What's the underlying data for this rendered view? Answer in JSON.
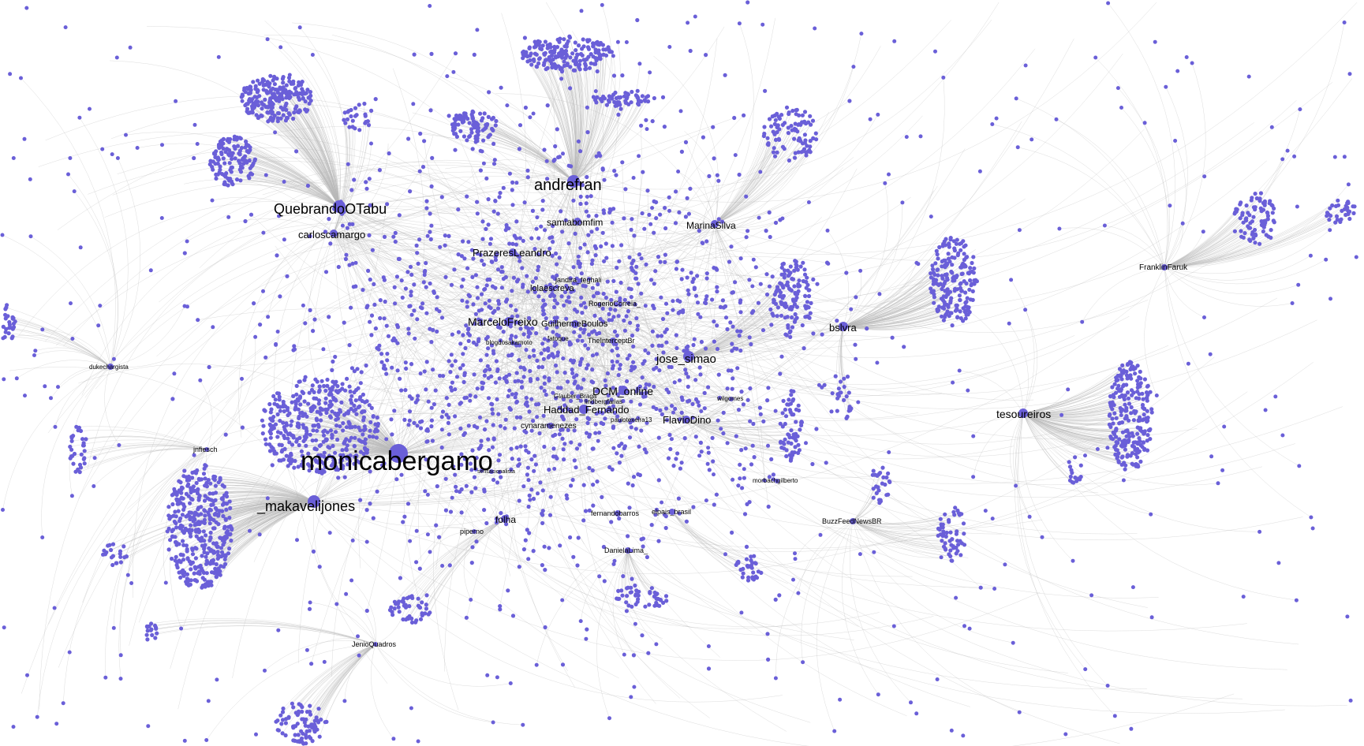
{
  "graph": {
    "node_color": "#6a5fd8",
    "edge_color": "#b8b8b8",
    "background": "#ffffff",
    "labels": [
      {
        "id": "monicabergamo",
        "text": "monicabergamo"
      },
      {
        "id": "andrefran",
        "text": "andrefran"
      },
      {
        "id": "QuebrandoOTabu",
        "text": "QuebrandoOTabu"
      },
      {
        "id": "_makavelijones",
        "text": "_makavelijones"
      },
      {
        "id": "carloscamargo",
        "text": "carloscamargo"
      },
      {
        "id": "samiabomfim",
        "text": "samiabomfim"
      },
      {
        "id": "MarinaSilva",
        "text": "MarinaSilva"
      },
      {
        "id": "PrazeresLeandro",
        "text": "PrazeresLeandro"
      },
      {
        "id": "jandira_feghali",
        "text": "jandira_feghali"
      },
      {
        "id": "lolaescreva",
        "text": "lolaescreva"
      },
      {
        "id": "RogerioCorreia_",
        "text": "RogerioCorreia_"
      },
      {
        "id": "MarceloFreixo",
        "text": "MarceloFreixo"
      },
      {
        "id": "GuilhermeBoulos",
        "text": "GuilhermeBoulos"
      },
      {
        "id": "fatoque",
        "text": "fatoque"
      },
      {
        "id": "blogdosakamoto",
        "text": "blogdosakamoto"
      },
      {
        "id": "TheInterceptBr",
        "text": "TheInterceptBr"
      },
      {
        "id": "jose_simao",
        "text": "jose_simao"
      },
      {
        "id": "DCM_online",
        "text": "DCM_online"
      },
      {
        "id": "Glauber_Braga",
        "text": "Glauber_Braga"
      },
      {
        "id": "lindbergfarias",
        "text": "lindbergfarias"
      },
      {
        "id": "wilgomes",
        "text": "wilgomes"
      },
      {
        "id": "Haddad_Fernando",
        "text": "Haddad_Fernando"
      },
      {
        "id": "FlavioDino",
        "text": "FlavioDino"
      },
      {
        "id": "paulotexeira13",
        "text": "paulotexeira13"
      },
      {
        "id": "cynaramenezes",
        "text": "cynaramenezes"
      },
      {
        "id": "bslvra",
        "text": "bslvra"
      },
      {
        "id": "tesoureiros",
        "text": "tesoureiros"
      },
      {
        "id": "FranklinFaruk",
        "text": "FranklinFaruk"
      },
      {
        "id": "dukechargista",
        "text": "dukechargista"
      },
      {
        "id": "jnfiesch",
        "text": "jnfiesch"
      },
      {
        "id": "sensacionalista",
        "text": "sensacionalista"
      },
      {
        "id": "folha",
        "text": "folha"
      },
      {
        "id": "piperno",
        "text": "piperno"
      },
      {
        "id": "fernandobarros",
        "text": "fernandobarros"
      },
      {
        "id": "elpais_brasil",
        "text": "elpais_brasil"
      },
      {
        "id": "DanielaLima_",
        "text": "DanielaLima_"
      },
      {
        "id": "morbachgilberto",
        "text": "morbachgilberto"
      },
      {
        "id": "BuzzFeedNewsBR",
        "text": "BuzzFeedNewsBR"
      },
      {
        "id": "JenioQuadros",
        "text": "JenioQuadros"
      }
    ]
  }
}
